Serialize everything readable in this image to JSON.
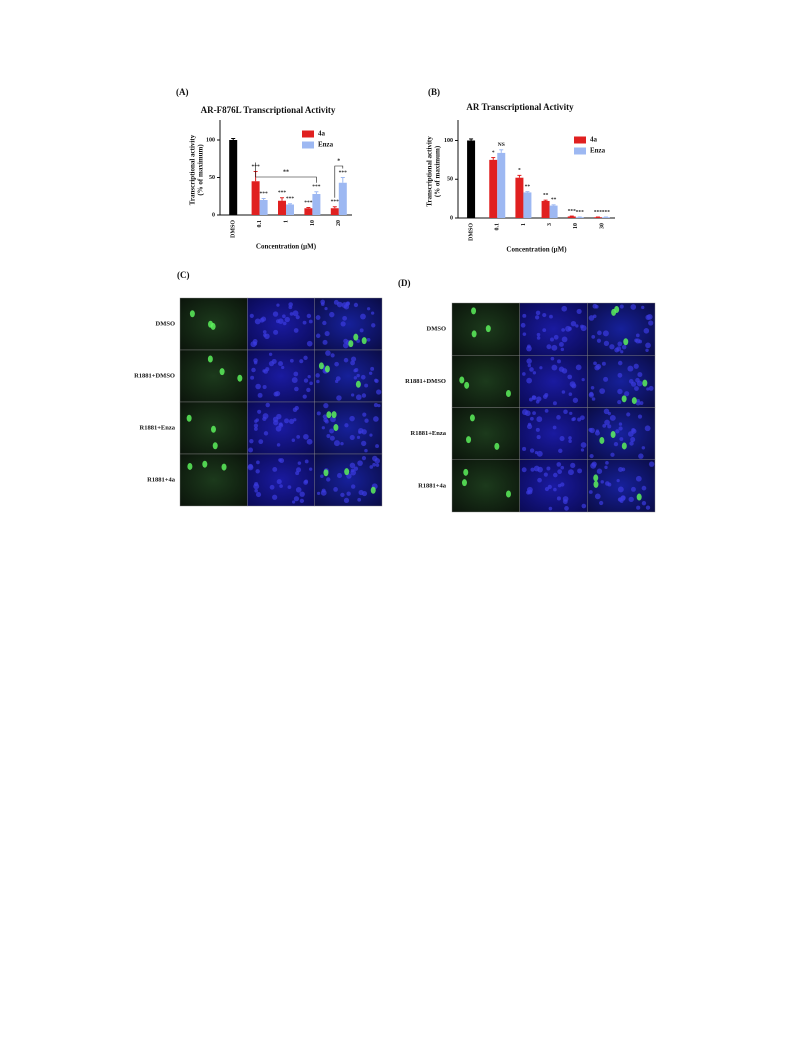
{
  "chart_data": [
    {
      "type": "bar",
      "panel_label": "(A)",
      "title": "AR-F876L Transcriptional Activity",
      "y_label": [
        "Transcriptional activity",
        "(% of maximum)"
      ],
      "x_label": "Concentration (μM)",
      "categories": [
        "DMSO",
        "0.1",
        "1",
        "10",
        "20"
      ],
      "series": [
        {
          "color": "#000000",
          "values": [
            100,
            null,
            null,
            null,
            null
          ],
          "errors": [
            2,
            null,
            null,
            null,
            null
          ]
        },
        {
          "name": "4a",
          "color": "#e02020",
          "values": [
            null,
            45,
            19,
            9,
            9
          ],
          "errors": [
            null,
            13,
            4,
            1,
            2
          ],
          "stars": [
            null,
            "***",
            "***",
            "***",
            "***"
          ]
        },
        {
          "name": "Enza",
          "color": "#9db8f2",
          "values": [
            null,
            20,
            14,
            28,
            43
          ],
          "errors": [
            null,
            2,
            1,
            3,
            7
          ],
          "stars": [
            null,
            "***",
            "***",
            "***",
            "***"
          ]
        }
      ],
      "brackets": [
        {
          "label": "**"
        },
        {
          "label": "*"
        }
      ],
      "ylim": [
        0,
        120
      ],
      "yticks": [
        0,
        50,
        100
      ]
    },
    {
      "type": "bar",
      "panel_label": "(B)",
      "title": "AR Transcriptional Activity",
      "y_label": [
        "Transcriptional activity",
        "(% of maximum)"
      ],
      "x_label": "Concentration (μM)",
      "categories": [
        "DMSO",
        "0.1",
        "1",
        "3",
        "10",
        "30"
      ],
      "series": [
        {
          "color": "#000000",
          "values": [
            100,
            null,
            null,
            null,
            null,
            null
          ],
          "errors": [
            2,
            null,
            null,
            null,
            null,
            null
          ]
        },
        {
          "name": "4a",
          "color": "#e02020",
          "values": [
            null,
            75,
            52,
            22,
            2,
            1
          ],
          "errors": [
            null,
            3,
            3,
            1,
            0.5,
            0.3
          ],
          "stars": [
            null,
            "*",
            "*",
            "**",
            "***",
            "***"
          ]
        },
        {
          "name": "Enza",
          "color": "#9db8f2",
          "values": [
            null,
            84,
            33,
            16,
            1,
            1
          ],
          "errors": [
            null,
            4,
            1,
            1,
            0.3,
            0.3
          ],
          "stars": [
            null,
            "NS",
            "**",
            "**",
            "***",
            "***"
          ]
        }
      ],
      "ylim": [
        0,
        120
      ],
      "yticks": [
        0,
        50,
        100
      ]
    }
  ],
  "image_panels": [
    {
      "label": "(C)",
      "rows": [
        "DMSO",
        "R1881+DMSO",
        "R1881+Enza",
        "R1881+4a"
      ]
    },
    {
      "label": "(D)",
      "rows": [
        "DMSO",
        "R1881+DMSO",
        "R1881+Enza",
        "R1881+4a"
      ]
    }
  ]
}
